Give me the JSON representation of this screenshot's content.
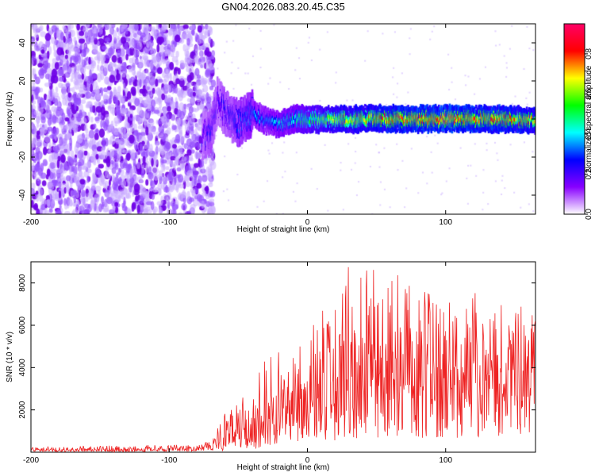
{
  "title": "GN04.2026.083.20.45.C35",
  "chart_data": [
    {
      "type": "heatmap",
      "name": "spectrogram",
      "xlabel": "Height of straight line (km)",
      "ylabel": "Frequency (Hz)",
      "xlim": [
        -200,
        165
      ],
      "ylim": [
        -50,
        50
      ],
      "xticks": [
        -200,
        -100,
        0,
        100
      ],
      "xtick_labels": [
        "-200",
        "-100",
        "0",
        "100"
      ],
      "yticks": [
        -40,
        -20,
        0,
        20,
        40
      ],
      "ytick_labels": [
        "-40",
        "-20",
        "0",
        "20",
        "40"
      ],
      "noise_region_x": [
        -200,
        -68
      ],
      "onset_x": -68,
      "signal_track": [
        {
          "x": -75,
          "y": -9,
          "a": 0.25
        },
        {
          "x": -70,
          "y": -6,
          "a": 0.3
        },
        {
          "x": -65,
          "y": 10,
          "a": 0.25
        },
        {
          "x": -60,
          "y": 4,
          "a": 0.3
        },
        {
          "x": -55,
          "y": 0,
          "a": 0.3
        },
        {
          "x": -50,
          "y": -2,
          "a": 0.35
        },
        {
          "x": -40,
          "y": 3,
          "a": 0.4
        },
        {
          "x": -30,
          "y": -1,
          "a": 0.4
        },
        {
          "x": -20,
          "y": -3,
          "a": 0.45
        },
        {
          "x": -10,
          "y": 0,
          "a": 0.5
        },
        {
          "x": 0,
          "y": 0,
          "a": 0.6
        },
        {
          "x": 20,
          "y": 0,
          "a": 0.75
        },
        {
          "x": 40,
          "y": 0,
          "a": 0.8
        },
        {
          "x": 60,
          "y": 0,
          "a": 0.9
        },
        {
          "x": 100,
          "y": 0,
          "a": 0.95
        },
        {
          "x": 140,
          "y": 0,
          "a": 0.9
        },
        {
          "x": 165,
          "y": -1,
          "a": 0.8
        }
      ],
      "colorbar": {
        "label": "Normalized spectral amplitude",
        "range": [
          0,
          0.95
        ],
        "ticks": [
          0.0,
          0.2,
          0.4,
          0.6,
          0.8
        ],
        "tick_labels": [
          "0.0",
          "0.2",
          "0.4",
          "0.6",
          "0.8"
        ],
        "colors": [
          "#ffffff",
          "#8800ff",
          "#0000ff",
          "#00ffff",
          "#00ff00",
          "#ffff00",
          "#ff0000",
          "#ff0066"
        ]
      }
    },
    {
      "type": "line",
      "name": "snr",
      "xlabel": "Height of straight line (km)",
      "ylabel": "SNR (10 * v/v)",
      "xlim": [
        -200,
        165
      ],
      "ylim": [
        0,
        9000
      ],
      "xticks": [
        -200,
        -100,
        0,
        100
      ],
      "xtick_labels": [
        "-200",
        "-100",
        "0",
        "100"
      ],
      "yticks": [
        2000,
        4000,
        6000,
        8000
      ],
      "ytick_labels": [
        "2000",
        "4000",
        "6000",
        "8000"
      ],
      "color": "#ee2222",
      "envelope": {
        "x": [
          -200,
          -100,
          -70,
          -60,
          -50,
          -40,
          -30,
          -20,
          -10,
          0,
          10,
          20,
          30,
          40,
          50,
          60,
          70,
          80,
          90,
          100,
          110,
          120,
          130,
          140,
          150,
          160,
          165
        ],
        "base": [
          100,
          100,
          150,
          400,
          700,
          700,
          1200,
          1500,
          1900,
          2200,
          2500,
          2800,
          3000,
          3000,
          3200,
          3200,
          3300,
          3400,
          3300,
          3500,
          3300,
          3600,
          3500,
          3700,
          3600,
          3800,
          3800
        ],
        "peak": [
          250,
          350,
          500,
          1800,
          2700,
          3000,
          4600,
          5500,
          5000,
          5600,
          6600,
          7600,
          8800,
          8500,
          9000,
          8700,
          8200,
          7500,
          7700,
          7400,
          7000,
          7800,
          6600,
          7000,
          6800,
          7200,
          7600
        ]
      }
    }
  ]
}
